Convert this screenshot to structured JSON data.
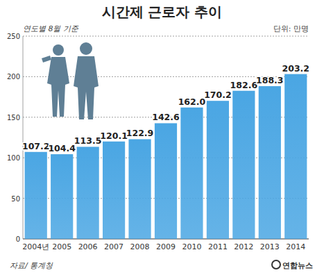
{
  "chart_data": {
    "type": "bar",
    "title": "시간제 근로자 추이",
    "subtitle": "연도별 8월 기준",
    "y_label": "단위: 만명",
    "annotations": [
      "자료/ 통계청",
      "연합뉴스"
    ],
    "categories": [
      "2004년",
      "2005",
      "2006",
      "2007",
      "2008",
      "2009",
      "2010",
      "2011",
      "2012",
      "2013",
      "2014"
    ],
    "values": [
      107.2,
      104.4,
      113.5,
      120.1,
      122.9,
      142.6,
      162.0,
      170.2,
      182.6,
      188.3,
      203.2
    ],
    "value_labels": [
      "107.2",
      "104.4",
      "113.5",
      "120.1",
      "122.9",
      "142.6",
      "162.0",
      "170.2",
      "182.6",
      "188.3",
      "203.2"
    ],
    "color": "#4aa6e3",
    "ylim": [
      0,
      250
    ],
    "yticks": [
      0,
      50,
      100,
      150,
      200,
      250
    ],
    "grid": true,
    "data_labels": true
  }
}
